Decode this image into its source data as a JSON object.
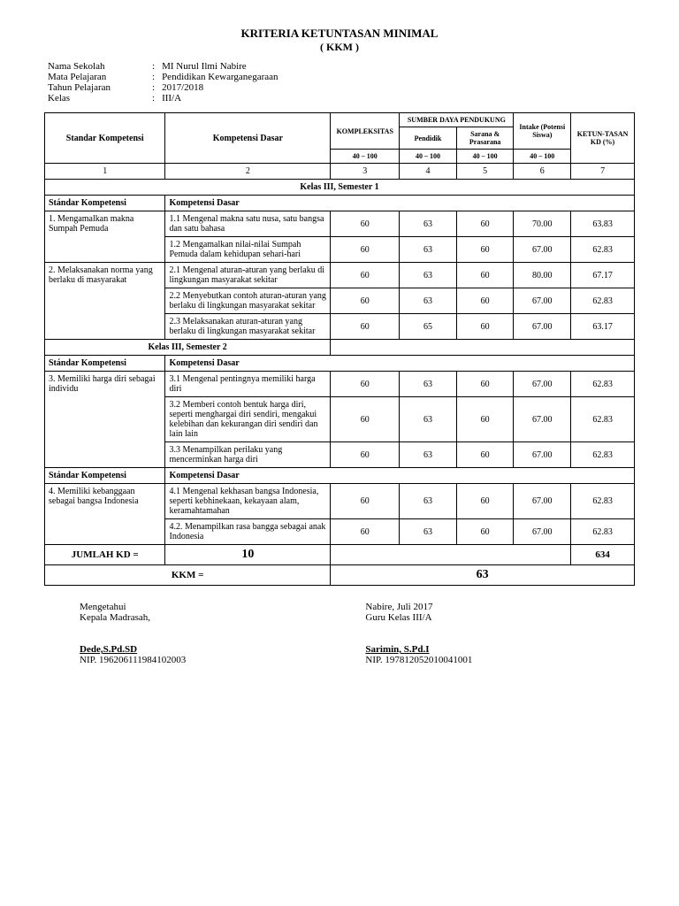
{
  "title": "KRITERIA KETUNTASAN MINIMAL",
  "subtitle": "( KKM )",
  "meta": {
    "school_label": "Nama Sekolah",
    "school_value": "MI Nurul Ilmi Nabire",
    "subject_label": "Mata Pelajaran",
    "subject_value": "Pendidikan Kewarganegaraan",
    "year_label": "Tahun Pelajaran",
    "year_value": "2017/2018",
    "class_label": "Kelas",
    "class_value": "III/A"
  },
  "headers": {
    "sk": "Standar Kompetensi",
    "kd": "Kompetensi Dasar",
    "komplek": "KOMPLEKSITAS",
    "sumber": "SUMBER DAYA PENDUKUNG",
    "pendidik": "Pendidik",
    "sarana": "Sarana & Prasarana",
    "intake": "Intake (Potensi Siswa)",
    "ketuntasan": "KETUN-TASAN KD (%)",
    "range": "40 – 100",
    "n1": "1",
    "n2": "2",
    "n3": "3",
    "n4": "4",
    "n5": "5",
    "n6": "6",
    "n7": "7"
  },
  "sem1_title": "Kelas III, Semester 1",
  "sem2_title": "Kelas III, Semester 2",
  "sk_header_label": "Stándar  Kompetensi",
  "kd_header_label": "Kompetensi Dasar",
  "sem1": [
    {
      "sk": "1. Mengamalkan makna Sumpah Pemuda",
      "rows": [
        {
          "kd": "1.1   Mengenal makna satu nusa, satu bangsa dan satu bahasa",
          "c3": "60",
          "c4": "63",
          "c5": "60",
          "c6": "70.00",
          "c7": "63.83"
        },
        {
          "kd": "1.2   Mengamalkan nilai-nilai Sumpah Pemuda dalam kehidupan sehari-hari",
          "c3": "60",
          "c4": "63",
          "c5": "60",
          "c6": "67.00",
          "c7": "62.83"
        }
      ]
    },
    {
      "sk": "2. Melaksanakan norma yang berlaku di masyarakat",
      "rows": [
        {
          "kd": "2.1   Mengenal aturan-aturan yang berlaku di lingkungan masyarakat sekitar",
          "c3": "60",
          "c4": "63",
          "c5": "60",
          "c6": "80.00",
          "c7": "67.17"
        },
        {
          "kd": "2.2   Menyebutkan contoh aturan-aturan yang berlaku di lingkungan masyarakat sekitar",
          "c3": "60",
          "c4": "63",
          "c5": "60",
          "c6": "67.00",
          "c7": "62.83"
        },
        {
          "kd": "2.3   Melaksanakan aturan-aturan yang berlaku di lingkungan masyarakat sekitar",
          "c3": "60",
          "c4": "65",
          "c5": "60",
          "c6": "67.00",
          "c7": "63.17"
        }
      ]
    }
  ],
  "sem2": [
    {
      "sk": "3. Memiliki harga diri sebagai individu",
      "rows": [
        {
          "kd": "3.1 Mengenal pentingnya memiliki harga diri",
          "c3": "60",
          "c4": "63",
          "c5": "60",
          "c6": "67.00",
          "c7": "62.83"
        },
        {
          "kd": "3.2 Memberi contoh bentuk harga diri, seperti menghargai diri sendiri, mengakui kelebihan dan kekurangan diri sendiri dan lain lain",
          "c3": "60",
          "c4": "63",
          "c5": "60",
          "c6": "67.00",
          "c7": "62.83"
        },
        {
          "kd": "3.3 Menampilkan perilaku yang mencerminkan harga diri",
          "c3": "60",
          "c4": "63",
          "c5": "60",
          "c6": "67.00",
          "c7": "62.83"
        }
      ]
    },
    {
      "sk": "4. Memiliki kebanggaan sebagai bangsa Indonesia",
      "rows": [
        {
          "kd": "4.1 Mengenal kekhasan bangsa Indonesia, seperti kebhinekaan, kekayaan alam, keramahtamahan",
          "c3": "60",
          "c4": "63",
          "c5": "60",
          "c6": "67.00",
          "c7": "62.83"
        },
        {
          "kd": "4.2. Menampilkan rasa bangga sebagai anak Indonesia",
          "c3": "60",
          "c4": "63",
          "c5": "60",
          "c6": "67.00",
          "c7": "62.83"
        }
      ]
    }
  ],
  "footer": {
    "jumlah_label": "JUMLAH KD     =",
    "jumlah_value": "10",
    "total_value": "634",
    "kkm_label": "KKM          =",
    "kkm_value": "63"
  },
  "sig": {
    "left1": "Mengetahui",
    "left2": "Kepala Madrasah,",
    "left_name": "Dede,S.Pd.SD",
    "left_nip": "NIP. 196206111984102003",
    "right1": "Nabire, Juli 2017",
    "right2": "Guru Kelas III/A",
    "right_name": "Sarimin, S.Pd.I",
    "right_nip": "NIP. 197812052010041001"
  }
}
